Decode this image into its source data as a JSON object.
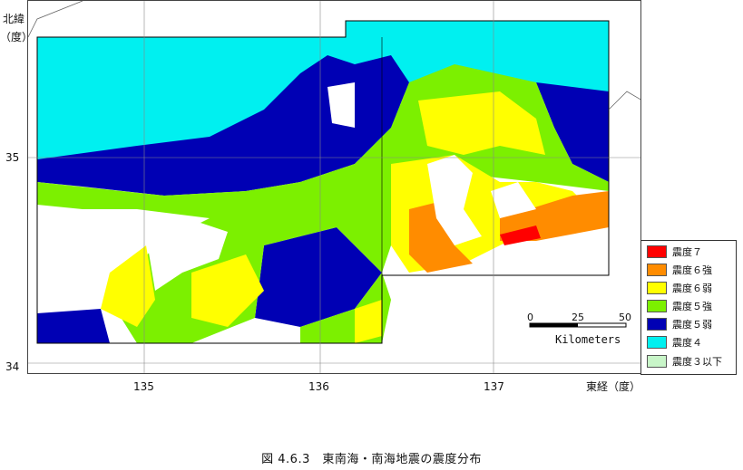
{
  "axes": {
    "lat_label_line1": "北緯",
    "lat_label_line2": "（度）",
    "lon_label": "東経（度）",
    "lat_ticks": [
      "35",
      "34"
    ],
    "lon_ticks": [
      "135",
      "136",
      "137"
    ]
  },
  "legend": {
    "items": [
      {
        "label": "震度７",
        "color": "#ff0000"
      },
      {
        "label": "震度６強",
        "color": "#ff8c00"
      },
      {
        "label": "震度６弱",
        "color": "#ffff00"
      },
      {
        "label": "震度５強",
        "color": "#7cf000"
      },
      {
        "label": "震度５弱",
        "color": "#0000b4"
      },
      {
        "label": "震度４",
        "color": "#00f0f0"
      },
      {
        "label": "震度３以下",
        "color": "#c8f5c8"
      }
    ]
  },
  "scale": {
    "ticks": [
      "0",
      "25",
      "50"
    ],
    "unit": "Kilometers"
  },
  "caption": "図 4.6.3　東南海・南海地震の震度分布"
}
